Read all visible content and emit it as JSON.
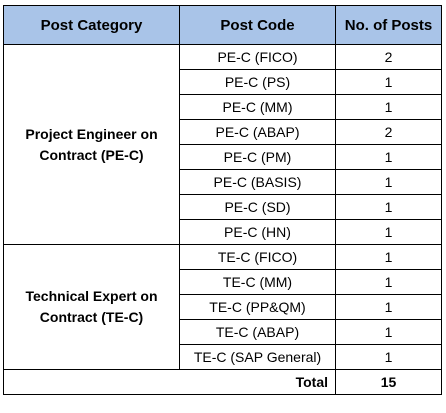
{
  "headers": {
    "category": "Post Category",
    "code": "Post Code",
    "posts": "No. of Posts"
  },
  "groups": [
    {
      "category_line1": "Project Engineer on",
      "category_line2": "Contract (PE-C)",
      "rows": [
        {
          "code": "PE-C (FICO)",
          "posts": "2"
        },
        {
          "code": "PE-C (PS)",
          "posts": "1"
        },
        {
          "code": "PE-C (MM)",
          "posts": "1"
        },
        {
          "code": "PE-C (ABAP)",
          "posts": "2"
        },
        {
          "code": "PE-C (PM)",
          "posts": "1"
        },
        {
          "code": "PE-C (BASIS)",
          "posts": "1"
        },
        {
          "code": "PE-C (SD)",
          "posts": "1"
        },
        {
          "code": "PE-C (HN)",
          "posts": "1"
        }
      ]
    },
    {
      "category_line1": "Technical Expert on",
      "category_line2": "Contract (TE-C)",
      "rows": [
        {
          "code": "TE-C (FICO)",
          "posts": "1"
        },
        {
          "code": "TE-C (MM)",
          "posts": "1"
        },
        {
          "code": "TE-C (PP&QM)",
          "posts": "1"
        },
        {
          "code": "TE-C (ABAP)",
          "posts": "1"
        },
        {
          "code": "TE-C (SAP General)",
          "posts": "1"
        }
      ]
    }
  ],
  "total": {
    "label": "Total",
    "value": "15"
  }
}
